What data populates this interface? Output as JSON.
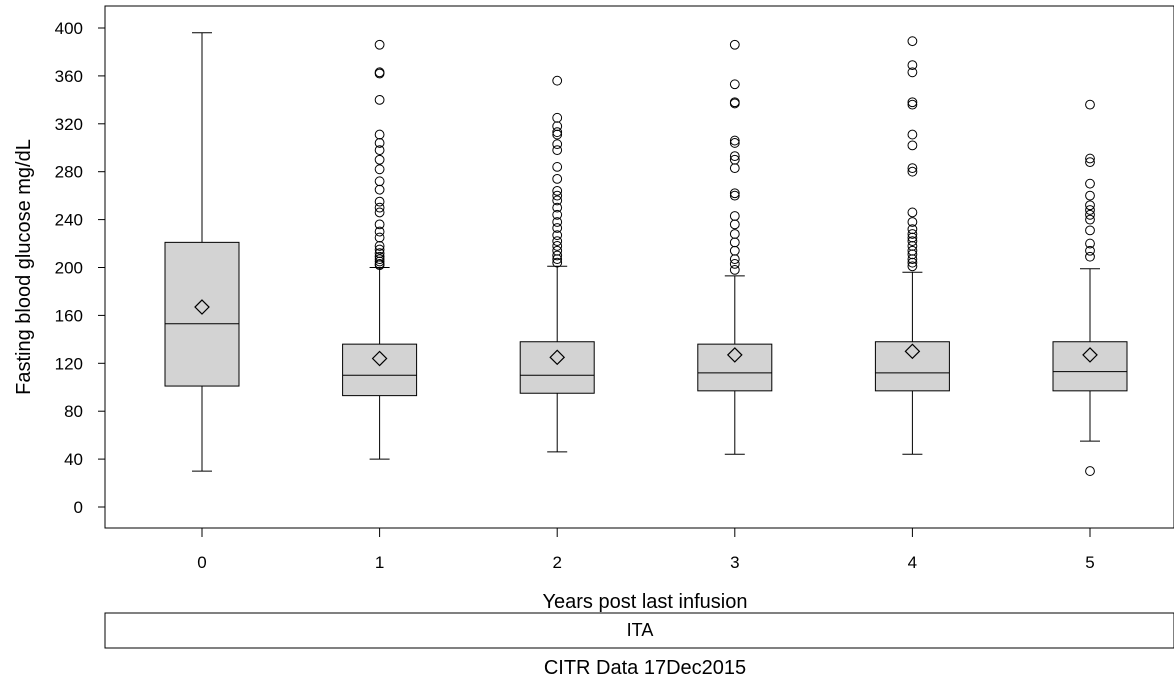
{
  "chart_data": {
    "type": "box",
    "xlabel": "Years post last infusion",
    "ylabel": "Fasting blood glucose mg/dL",
    "ylim": [
      -15,
      410
    ],
    "yticks": [
      "0",
      "40",
      "80",
      "120",
      "160",
      "200",
      "240",
      "280",
      "320",
      "360",
      "400"
    ],
    "categories": [
      "0",
      "1",
      "2",
      "3",
      "4",
      "5"
    ],
    "boxes": [
      {
        "category": "0",
        "whisker_low": 30,
        "q1": 101,
        "median": 153,
        "q3": 221,
        "whisker_high": 396,
        "mean": 167,
        "outliers": []
      },
      {
        "category": "1",
        "whisker_low": 40,
        "q1": 93,
        "median": 110,
        "q3": 136,
        "whisker_high": 200,
        "mean": 124,
        "outliers": [
          202,
          203,
          205,
          207,
          209,
          212,
          215,
          218,
          225,
          230,
          236,
          246,
          250,
          255,
          265,
          272,
          282,
          290,
          298,
          304,
          311,
          340,
          362,
          363,
          386
        ]
      },
      {
        "category": "2",
        "whisker_low": 46,
        "q1": 95,
        "median": 110,
        "q3": 138,
        "whisker_high": 201,
        "mean": 125,
        "outliers": [
          204,
          207,
          210,
          214,
          218,
          222,
          227,
          233,
          238,
          244,
          250,
          256,
          260,
          264,
          274,
          284,
          298,
          303,
          311,
          313,
          318,
          325,
          356
        ]
      },
      {
        "category": "3",
        "whisker_low": 44,
        "q1": 97,
        "median": 112,
        "q3": 136,
        "whisker_high": 193,
        "mean": 127,
        "outliers": [
          198,
          203,
          207,
          214,
          221,
          228,
          236,
          243,
          260,
          262,
          283,
          290,
          293,
          304,
          306,
          337,
          338,
          353,
          386
        ]
      },
      {
        "category": "4",
        "whisker_low": 44,
        "q1": 97,
        "median": 112,
        "q3": 138,
        "whisker_high": 196,
        "mean": 130,
        "outliers": [
          201,
          204,
          207,
          211,
          214,
          218,
          222,
          225,
          228,
          232,
          238,
          246,
          280,
          283,
          302,
          311,
          336,
          338,
          363,
          369,
          389
        ]
      },
      {
        "category": "5",
        "whisker_low": 55,
        "q1": 97,
        "median": 113,
        "q3": 138,
        "whisker_high": 199,
        "mean": 127,
        "outliers": [
          30,
          209,
          214,
          220,
          231,
          240,
          244,
          248,
          252,
          260,
          270,
          288,
          291,
          336
        ]
      }
    ],
    "grid": false,
    "legend": "none"
  },
  "panel_label": "ITA",
  "footer": "CITR  Data 17Dec2015",
  "colors": {
    "box_fill": "#d3d3d3",
    "stroke": "#000000",
    "background": "#ffffff"
  }
}
